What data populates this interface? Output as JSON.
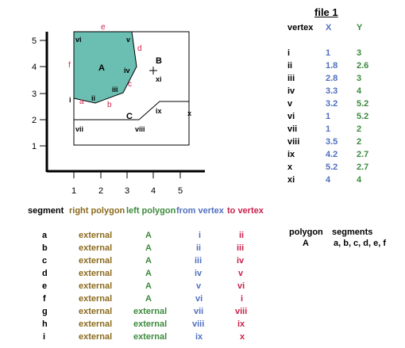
{
  "file_title": "file 1",
  "vertex_table": {
    "headers": [
      "vertex",
      "X",
      "Y"
    ],
    "rows": [
      {
        "v": "i",
        "x": "1",
        "y": "3"
      },
      {
        "v": "ii",
        "x": "1.8",
        "y": "2.6"
      },
      {
        "v": "iii",
        "x": "2.8",
        "y": "3"
      },
      {
        "v": "iv",
        "x": "3.3",
        "y": "4"
      },
      {
        "v": "v",
        "x": "3.2",
        "y": "5.2"
      },
      {
        "v": "vi",
        "x": "1",
        "y": "5.2"
      },
      {
        "v": "vii",
        "x": "1",
        "y": "2"
      },
      {
        "v": "viii",
        "x": "3.5",
        "y": "2"
      },
      {
        "v": "ix",
        "x": "4.2",
        "y": "2.7"
      },
      {
        "v": "x",
        "x": "5.2",
        "y": "2.7"
      },
      {
        "v": "xi",
        "x": "4",
        "y": "4"
      }
    ]
  },
  "plot": {
    "x_ticks": [
      "1",
      "2",
      "3",
      "4",
      "5"
    ],
    "y_ticks": [
      "1",
      "2",
      "3",
      "4",
      "5"
    ],
    "polygon_label": "A",
    "point_labels": {
      "B": "B",
      "C": "C"
    },
    "colors": {
      "fill": "#6bbfb2",
      "red": "#cc1f4a",
      "black": "#000000"
    }
  },
  "segment_table": {
    "headers": [
      {
        "text": "segment",
        "color": "#000000"
      },
      {
        "text": "right polygon",
        "color": "#8a6a1c"
      },
      {
        "text": "left polygon",
        "color": "#3c8a3c"
      },
      {
        "text": "from vertex",
        "color": "#4f6fbf"
      },
      {
        "text": "to vertex",
        "color": "#cc1f4a"
      }
    ],
    "rows": [
      {
        "seg": "a",
        "right": "external",
        "left": "A",
        "from": "i",
        "to": "ii"
      },
      {
        "seg": "b",
        "right": "external",
        "left": "A",
        "from": "ii",
        "to": "iii"
      },
      {
        "seg": "c",
        "right": "external",
        "left": "A",
        "from": "iii",
        "to": "iv"
      },
      {
        "seg": "d",
        "right": "external",
        "left": "A",
        "from": "iv",
        "to": "v"
      },
      {
        "seg": "e",
        "right": "external",
        "left": "A",
        "from": "v",
        "to": "vi"
      },
      {
        "seg": "f",
        "right": "external",
        "left": "A",
        "from": "vi",
        "to": "i"
      },
      {
        "seg": "g",
        "right": "external",
        "left": "external",
        "from": "vii",
        "to": "viii"
      },
      {
        "seg": "h",
        "right": "external",
        "left": "external",
        "from": "viii",
        "to": "ix"
      },
      {
        "seg": "i",
        "right": "external",
        "left": "external",
        "from": "ix",
        "to": "x"
      }
    ]
  },
  "polygon_table": {
    "headers": [
      "polygon",
      "segments"
    ],
    "rows": [
      {
        "polygon": "A",
        "segments": "a, b, c, d, e, f"
      }
    ]
  }
}
